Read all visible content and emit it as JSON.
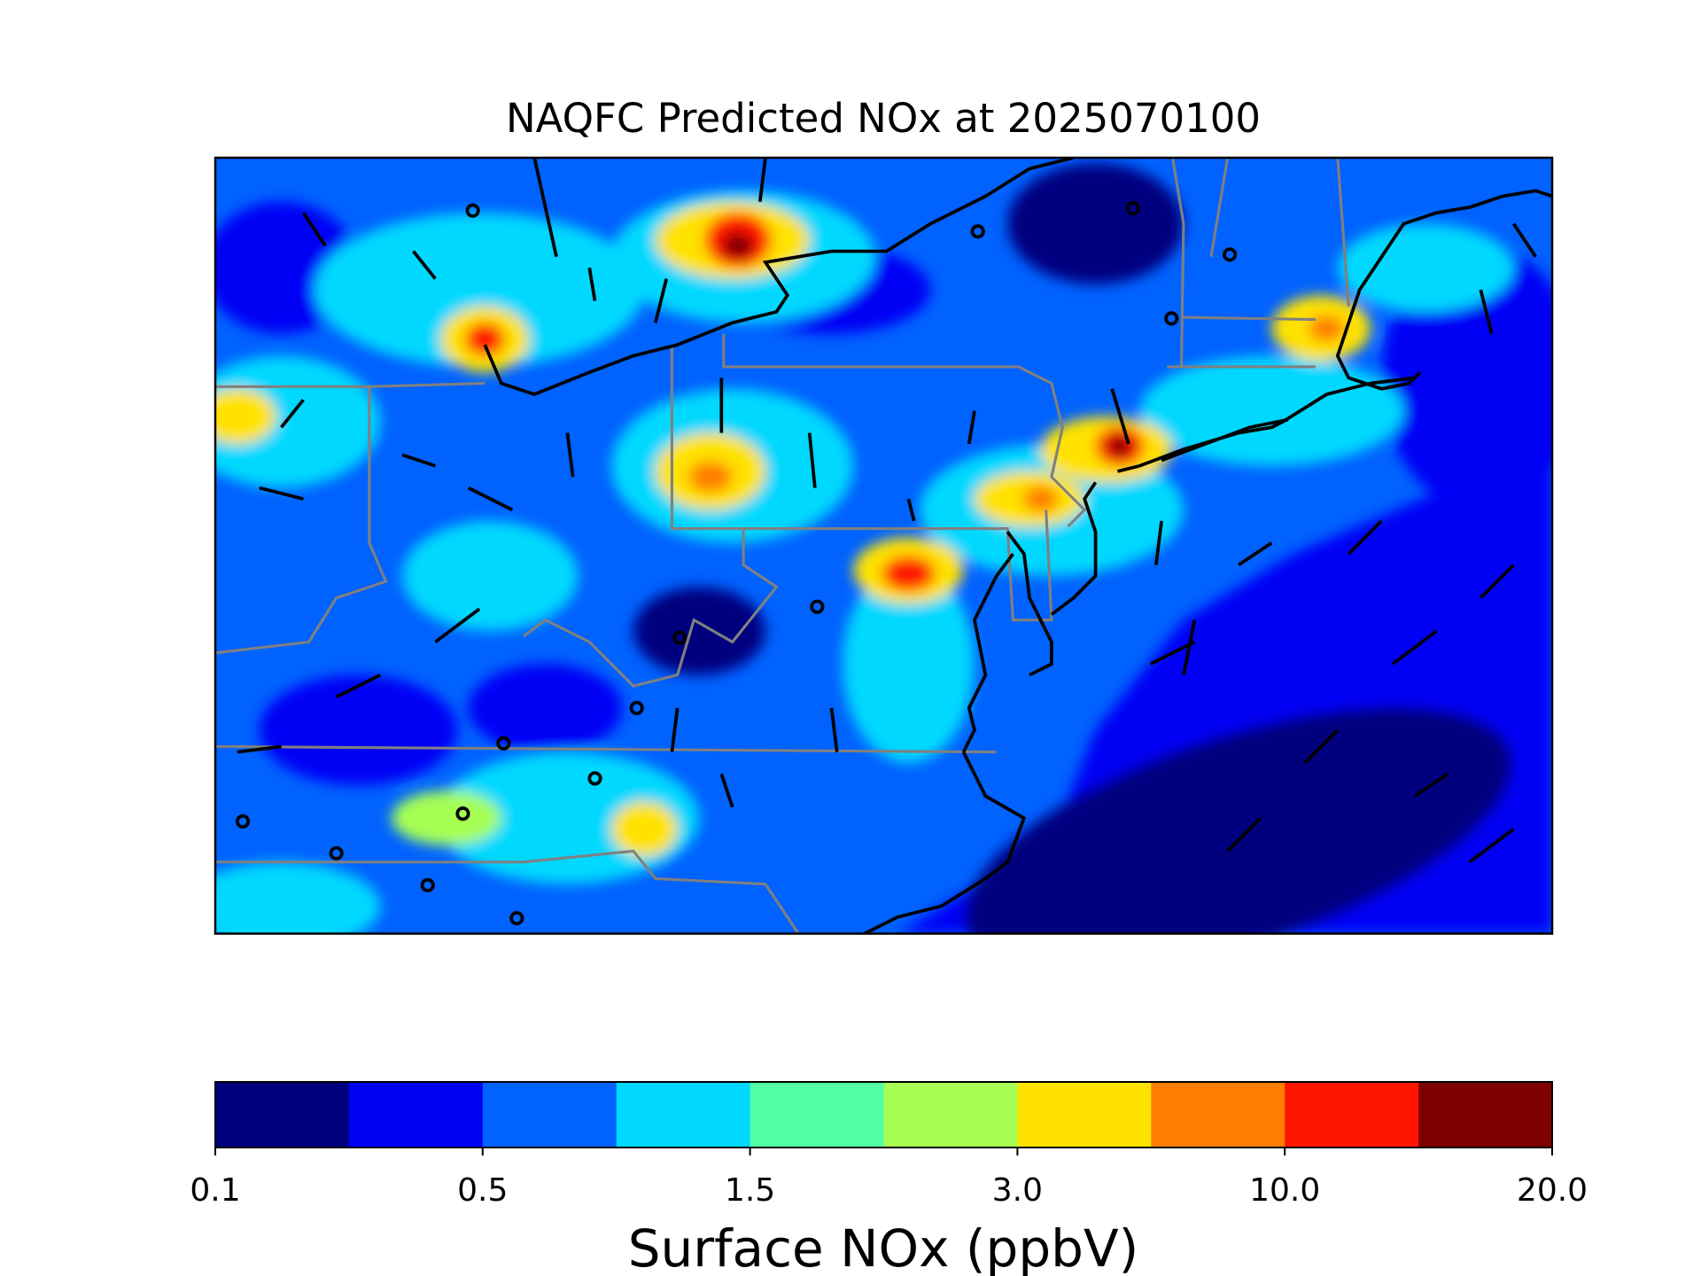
{
  "title": "NAQFC Predicted NOx at 2025070100",
  "colorbar": {
    "label": "Surface NOx (ppbV)",
    "colors": [
      "#00007f",
      "#0000f5",
      "#0062ff",
      "#00d8ff",
      "#52ffa6",
      "#a6ff52",
      "#ffe200",
      "#ff7d00",
      "#ff1600",
      "#7f0000"
    ],
    "ticks": [
      0.1,
      0.5,
      1.5,
      {
        "value": 3,
        "label": "3.0"
      },
      {
        "value": 10,
        "label": "10.0"
      },
      {
        "value": 20,
        "label": "20.0"
      }
    ]
  }
}
